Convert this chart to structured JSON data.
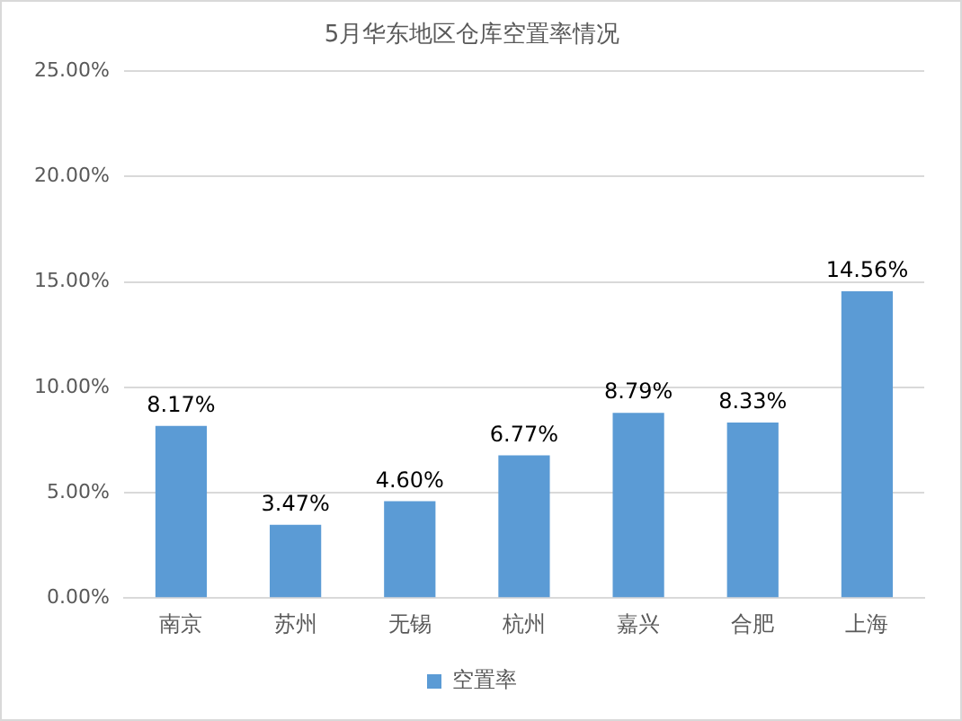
{
  "chart_data": {
    "type": "bar",
    "title": "5月华东地区仓库空置率情况",
    "categories": [
      "南京",
      "苏州",
      "无锡",
      "杭州",
      "嘉兴",
      "合肥",
      "上海"
    ],
    "series": [
      {
        "name": "空置率",
        "color": "#5b9bd5",
        "values": [
          8.17,
          3.47,
          4.6,
          6.77,
          8.79,
          8.33,
          14.56
        ],
        "value_labels": [
          "8.17%",
          "3.47%",
          "4.60%",
          "6.77%",
          "8.79%",
          "8.33%",
          "14.56%"
        ]
      }
    ],
    "ylim": [
      0,
      25
    ],
    "yticks": [
      {
        "value": 0,
        "label": "0.00%"
      },
      {
        "value": 5,
        "label": "5.00%"
      },
      {
        "value": 10,
        "label": "10.00%"
      },
      {
        "value": 15,
        "label": "15.00%"
      },
      {
        "value": 20,
        "label": "20.00%"
      },
      {
        "value": 25,
        "label": "25.00%"
      }
    ],
    "grid": "y",
    "legend": "bottom"
  }
}
